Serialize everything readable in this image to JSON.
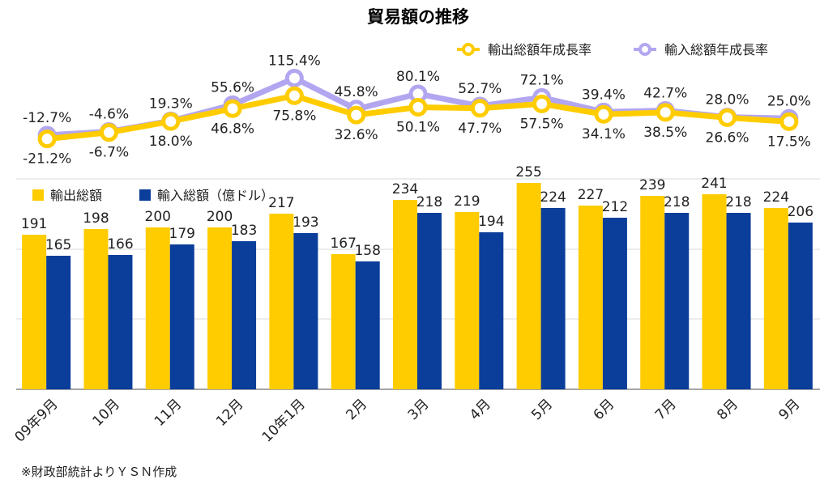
{
  "chart_data": {
    "title": "貿易額の推移",
    "source": "※財政部統計よりＹＳＮ作成",
    "categories": [
      "09年9月",
      "10月",
      "11月",
      "12月",
      "10年1月",
      "2月",
      "3月",
      "4月",
      "5月",
      "6月",
      "7月",
      "8月",
      "9月"
    ],
    "bars": {
      "type": "bar",
      "unit": "億ドル",
      "series": [
        {
          "name": "輸出総額",
          "color": "#FFCC00",
          "values": [
            191,
            198,
            200,
            200,
            217,
            167,
            234,
            219,
            255,
            227,
            239,
            241,
            224
          ]
        },
        {
          "name": "輸入総額（億ドル）",
          "color": "#0B3D9A",
          "values": [
            165,
            166,
            179,
            183,
            193,
            158,
            218,
            194,
            224,
            212,
            218,
            218,
            206
          ]
        }
      ],
      "ylim": [
        0,
        260
      ],
      "grid": true
    },
    "lines": {
      "type": "line",
      "unit": "%",
      "series": [
        {
          "name": "輸出総額年成長率",
          "color": "#FFCC00",
          "values": [
            -21.2,
            -6.7,
            18.0,
            46.8,
            75.8,
            32.6,
            50.1,
            47.7,
            57.5,
            34.1,
            38.5,
            26.6,
            17.5
          ],
          "labels": [
            "-21.2%",
            "-6.7%",
            "18.0%",
            "46.8%",
            "75.8%",
            "32.6%",
            "50.1%",
            "47.7%",
            "57.5%",
            "34.1%",
            "38.5%",
            "26.6%",
            "17.5%"
          ]
        },
        {
          "name": "輸入総額年成長率",
          "color": "#B3A6F0",
          "values": [
            -12.7,
            -4.6,
            19.3,
            55.6,
            115.4,
            45.8,
            80.1,
            52.7,
            72.1,
            39.4,
            42.7,
            28.0,
            25.0
          ],
          "labels": [
            "-12.7%",
            "-4.6%",
            "19.3%",
            "55.6%",
            "115.4%",
            "45.8%",
            "80.1%",
            "52.7%",
            "72.1%",
            "39.4%",
            "42.7%",
            "28.0%",
            "25.0%"
          ]
        }
      ]
    }
  }
}
